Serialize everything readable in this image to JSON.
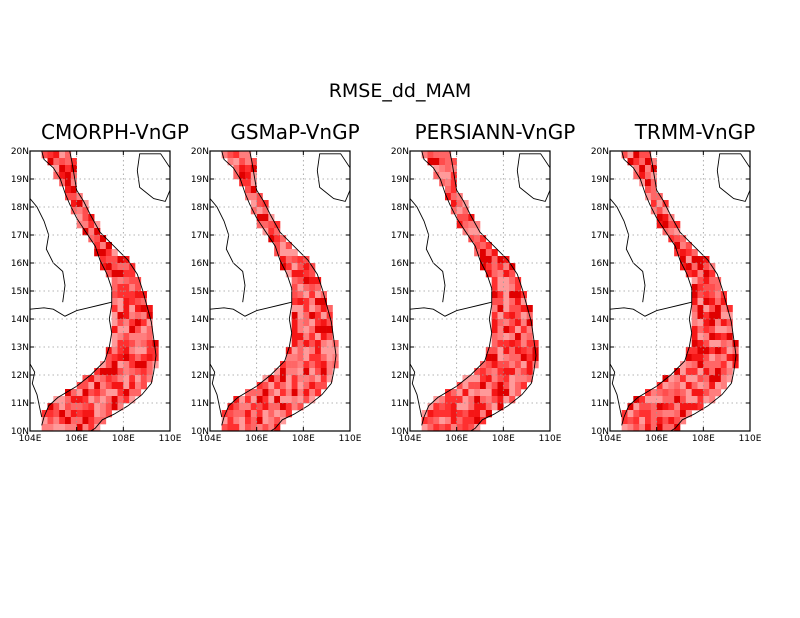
{
  "title": "RMSE_dd_MAM",
  "colors": {
    "cell_palette": [
      "#ff9a9a",
      "#ff7e7e",
      "#ff6666",
      "#ff4d4d",
      "#ff3030",
      "#f51616",
      "#e00000"
    ],
    "coastline": "#000000",
    "grid": "#9a9a9a"
  },
  "axes": {
    "lat_labels": [
      "10N",
      "11N",
      "12N",
      "13N",
      "14N",
      "15N",
      "16N",
      "17N",
      "18N",
      "19N",
      "20N"
    ],
    "lat_values": [
      10,
      11,
      12,
      13,
      14,
      15,
      16,
      17,
      18,
      19,
      20
    ],
    "lon_labels": [
      "104E",
      "106E",
      "108E",
      "110E"
    ],
    "lon_values": [
      104,
      106,
      108,
      110
    ],
    "lat_range": [
      10,
      20
    ],
    "lon_range": [
      104,
      110
    ],
    "gridlines": true
  },
  "panels": [
    {
      "title": "CMORPH-VnGP",
      "seed": 11
    },
    {
      "title": "GSMaP-VnGP",
      "seed": 23
    },
    {
      "title": "PERSIANN-VnGP",
      "seed": 37
    },
    {
      "title": "TRMM-VnGP",
      "seed": 53
    }
  ]
}
